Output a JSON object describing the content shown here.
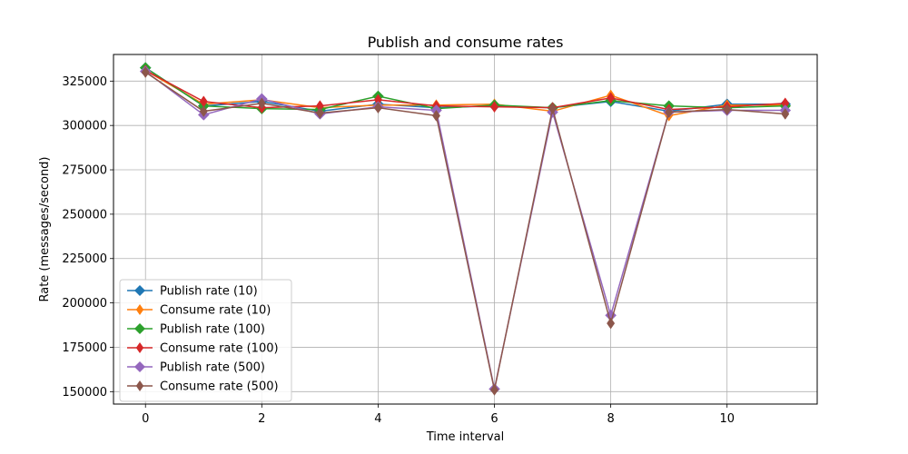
{
  "chart_data": {
    "type": "line",
    "title": "Publish and consume rates",
    "xlabel": "Time interval",
    "ylabel": "Rate (messages/second)",
    "xlim": [
      -0.55,
      11.55
    ],
    "ylim": [
      143000,
      340000
    ],
    "xticks": [
      0,
      2,
      4,
      6,
      8,
      10
    ],
    "yticks": [
      150000,
      175000,
      200000,
      225000,
      250000,
      275000,
      300000,
      325000
    ],
    "grid": true,
    "legend_position": "lower left",
    "x": [
      0,
      1,
      2,
      3,
      4,
      5,
      6,
      7,
      8,
      9,
      10,
      11
    ],
    "series": [
      {
        "name": "Publish rate (10)",
        "color": "#1f77b4",
        "marker": "D",
        "values": [
          332500,
          311000,
          313500,
          308000,
          312000,
          310000,
          311000,
          310000,
          313500,
          308000,
          312000,
          312000
        ]
      },
      {
        "name": "Consume rate (10)",
        "color": "#ff7f0e",
        "marker": "d",
        "values": [
          331000,
          312000,
          314500,
          310000,
          311500,
          311500,
          312000,
          308000,
          317000,
          305500,
          311500,
          311500
        ]
      },
      {
        "name": "Publish rate (100)",
        "color": "#2ca02c",
        "marker": "D",
        "values": [
          332500,
          311000,
          309500,
          309000,
          316500,
          309500,
          311500,
          310000,
          314000,
          311000,
          310000,
          311000
        ]
      },
      {
        "name": "Consume rate (100)",
        "color": "#d62728",
        "marker": "d",
        "values": [
          331000,
          313500,
          310000,
          311000,
          314500,
          311000,
          310500,
          310000,
          315500,
          309000,
          310500,
          312500
        ]
      },
      {
        "name": "Publish rate (500)",
        "color": "#9467bd",
        "marker": "D",
        "values": [
          330500,
          306000,
          315000,
          306500,
          310500,
          308500,
          151500,
          307500,
          193000,
          307500,
          308500,
          308500
        ]
      },
      {
        "name": "Consume rate (500)",
        "color": "#8c564b",
        "marker": "d",
        "values": [
          330000,
          308000,
          312500,
          307000,
          310000,
          305500,
          151000,
          309500,
          188500,
          307500,
          309000,
          306500
        ]
      }
    ]
  }
}
